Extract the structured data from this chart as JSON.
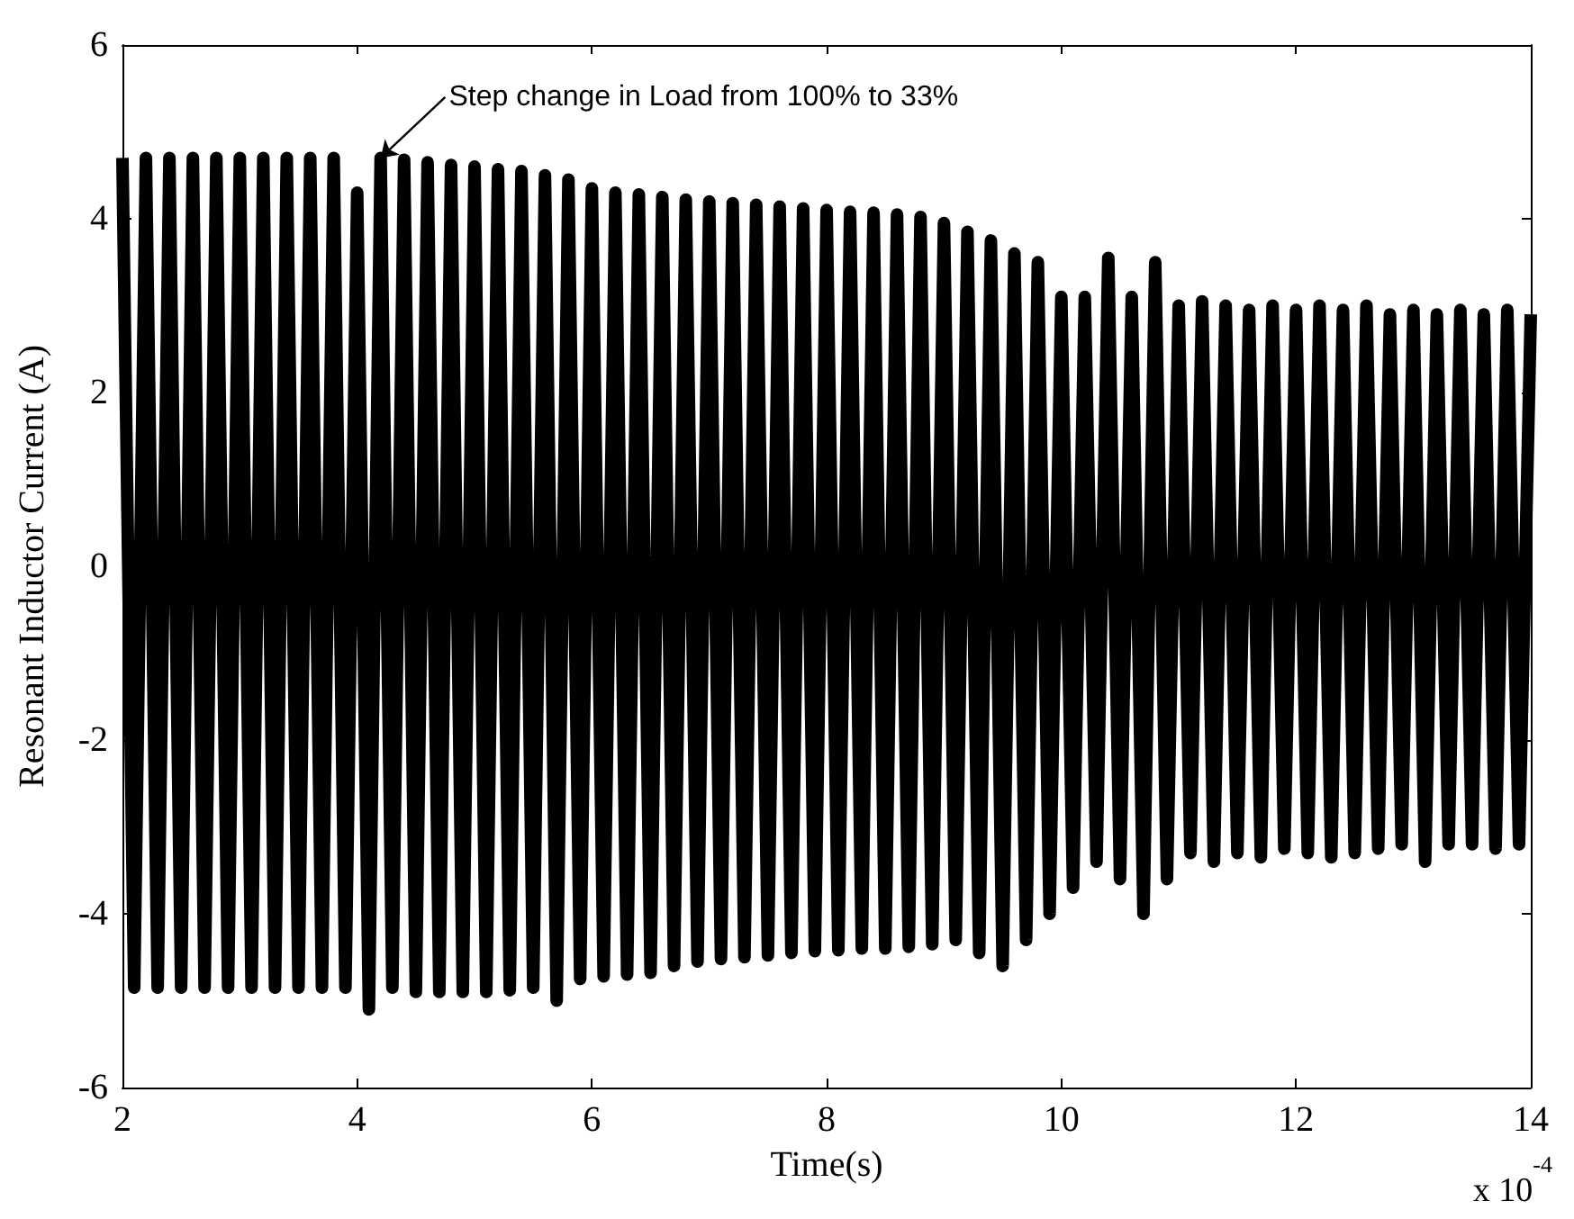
{
  "chart_data": {
    "type": "line",
    "xlabel": "Time(s)",
    "ylabel": "Resonant Inductor Current (A)",
    "annotations": [
      {
        "text": "Step change in Load from 100% to 33%",
        "x": 4.2,
        "y": 4.7
      },
      "x 10$^{-4}$"
    ],
    "xlim": [
      2,
      14
    ],
    "xticks": [
      2,
      4,
      6,
      8,
      10,
      12,
      14
    ],
    "ylim": [
      -6,
      6
    ],
    "yticks": [
      -6,
      -4,
      -2,
      0,
      2,
      4,
      6
    ],
    "marker": "none",
    "line_style": "solid",
    "x": [
      2.0,
      2.1,
      2.2,
      2.3,
      2.4,
      2.5,
      2.6,
      2.7,
      2.8,
      2.9,
      3.0,
      3.1,
      3.2,
      3.3,
      3.4,
      3.5,
      3.6,
      3.7,
      3.8,
      3.9,
      4.0,
      4.1,
      4.2,
      4.3,
      4.4,
      4.5,
      4.6,
      4.7,
      4.8,
      4.9,
      5.0,
      5.1,
      5.2,
      5.3,
      5.4,
      5.5,
      5.6,
      5.7,
      5.8,
      5.9,
      6.0,
      6.1,
      6.2,
      6.3,
      6.4,
      6.5,
      6.6,
      6.7,
      6.8,
      6.9,
      7.0,
      7.1,
      7.2,
      7.3,
      7.4,
      7.5,
      7.6,
      7.7,
      7.8,
      7.9,
      8.0,
      8.1,
      8.2,
      8.3,
      8.4,
      8.5,
      8.6,
      8.7,
      8.8,
      8.9,
      9.0,
      9.1,
      9.2,
      9.3,
      9.4,
      9.5,
      9.6,
      9.7,
      9.8,
      9.9,
      10.0,
      10.1,
      10.2,
      10.3,
      10.4,
      10.5,
      10.6,
      10.7,
      10.8,
      10.9,
      11.0,
      11.1,
      11.2,
      11.3,
      11.4,
      11.5,
      11.6,
      11.7,
      11.8,
      11.9,
      12.0,
      12.1,
      12.2,
      12.3,
      12.4,
      12.5,
      12.6,
      12.7,
      12.8,
      12.9,
      13.0,
      13.1,
      13.2,
      13.3,
      13.4,
      13.5,
      13.6,
      13.7,
      13.8,
      13.9,
      14.0
    ],
    "series": [
      {
        "color": "#000000",
        "values": [
          4.7,
          -4.85,
          4.7,
          -4.85,
          4.7,
          -4.85,
          4.7,
          -4.85,
          4.7,
          -4.85,
          4.7,
          -4.85,
          4.7,
          -4.85,
          4.7,
          -4.85,
          4.7,
          -4.85,
          4.7,
          -4.85,
          4.3,
          -5.1,
          4.7,
          -4.85,
          4.68,
          -4.9,
          4.65,
          -4.9,
          4.62,
          -4.9,
          4.6,
          -4.9,
          4.57,
          -4.88,
          4.55,
          -4.85,
          4.5,
          -5.0,
          4.45,
          -4.75,
          4.35,
          -4.72,
          4.3,
          -4.7,
          4.28,
          -4.68,
          4.25,
          -4.6,
          4.22,
          -4.55,
          4.2,
          -4.52,
          4.18,
          -4.5,
          4.16,
          -4.48,
          4.14,
          -4.45,
          4.12,
          -4.43,
          4.1,
          -4.42,
          4.08,
          -4.4,
          4.07,
          -4.4,
          4.05,
          -4.38,
          4.02,
          -4.35,
          3.95,
          -4.3,
          3.85,
          -4.45,
          3.75,
          -4.6,
          3.6,
          -4.3,
          3.5,
          -4.0,
          3.1,
          -3.7,
          3.1,
          -3.4,
          3.55,
          -3.6,
          3.1,
          -4.0,
          3.5,
          -3.6,
          3.0,
          -3.3,
          3.05,
          -3.4,
          3.0,
          -3.3,
          2.95,
          -3.35,
          3.0,
          -3.25,
          2.95,
          -3.3,
          3.0,
          -3.35,
          2.95,
          -3.3,
          3.0,
          -3.25,
          2.9,
          -3.2,
          2.95,
          -3.4,
          2.9,
          -3.2,
          2.95,
          -3.2,
          2.9,
          -3.25,
          2.95,
          -3.2,
          2.9
        ]
      }
    ]
  }
}
